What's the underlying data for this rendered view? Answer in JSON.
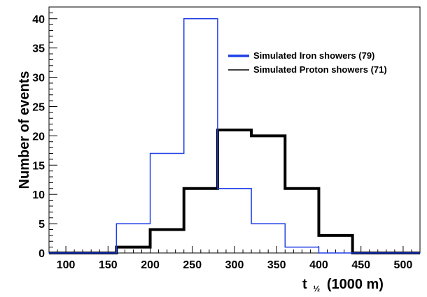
{
  "chart_data": {
    "type": "histogram",
    "title": "",
    "xlabel": "t",
    "xlabel_subscript": "½",
    "xlabel_unit": "(1000 m)",
    "ylabel": "Number of events",
    "xlim": [
      80,
      520
    ],
    "ylim": [
      0,
      42
    ],
    "xticks": [
      100,
      150,
      200,
      250,
      300,
      350,
      400,
      450,
      500
    ],
    "yticks": [
      0,
      5,
      10,
      15,
      20,
      25,
      30,
      35,
      40
    ],
    "grid": false,
    "legend_position": "top-right",
    "bin_edges": [
      160,
      200,
      240,
      280,
      320,
      360,
      400,
      440
    ],
    "series": [
      {
        "name": "Simulated Iron showers (79)",
        "color": "#1f3fe6",
        "values": [
          5,
          17,
          40,
          11,
          5,
          1,
          0
        ]
      },
      {
        "name": "Simulated Proton showers (71)",
        "color": "#000000",
        "values": [
          1,
          4,
          11,
          21,
          20,
          11,
          3
        ]
      }
    ]
  }
}
